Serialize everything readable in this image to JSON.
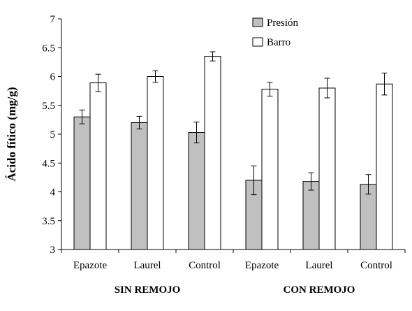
{
  "chart_data": {
    "type": "bar",
    "ylabel": "Ácido fítico (mg/g)",
    "xlabel": "",
    "ylim": [
      3,
      7
    ],
    "yticks": [
      "3",
      "3.5",
      "4",
      "4.5",
      "5",
      "5.5",
      "6",
      "6.5",
      "7"
    ],
    "categories": [
      "Epazote",
      "Laurel",
      "Control",
      "Epazote",
      "Laurel",
      "Control"
    ],
    "groups": [
      {
        "label": "SIN REMOJO",
        "categories": [
          "Epazote",
          "Laurel",
          "Control"
        ]
      },
      {
        "label": "CON REMOJO",
        "categories": [
          "Epazote",
          "Laurel",
          "Control"
        ]
      }
    ],
    "series": [
      {
        "name": "Presión",
        "color": "#c0c0c0",
        "values": [
          5.3,
          5.2,
          5.03,
          4.2,
          4.18,
          4.13
        ],
        "errors": [
          0.12,
          0.11,
          0.18,
          0.25,
          0.15,
          0.17
        ]
      },
      {
        "name": "Barro",
        "color": "#ffffff",
        "values": [
          5.89,
          6.0,
          6.35,
          5.78,
          5.8,
          5.87
        ],
        "errors": [
          0.15,
          0.1,
          0.08,
          0.12,
          0.17,
          0.19
        ]
      }
    ],
    "legend": "top-center",
    "grid": false
  }
}
